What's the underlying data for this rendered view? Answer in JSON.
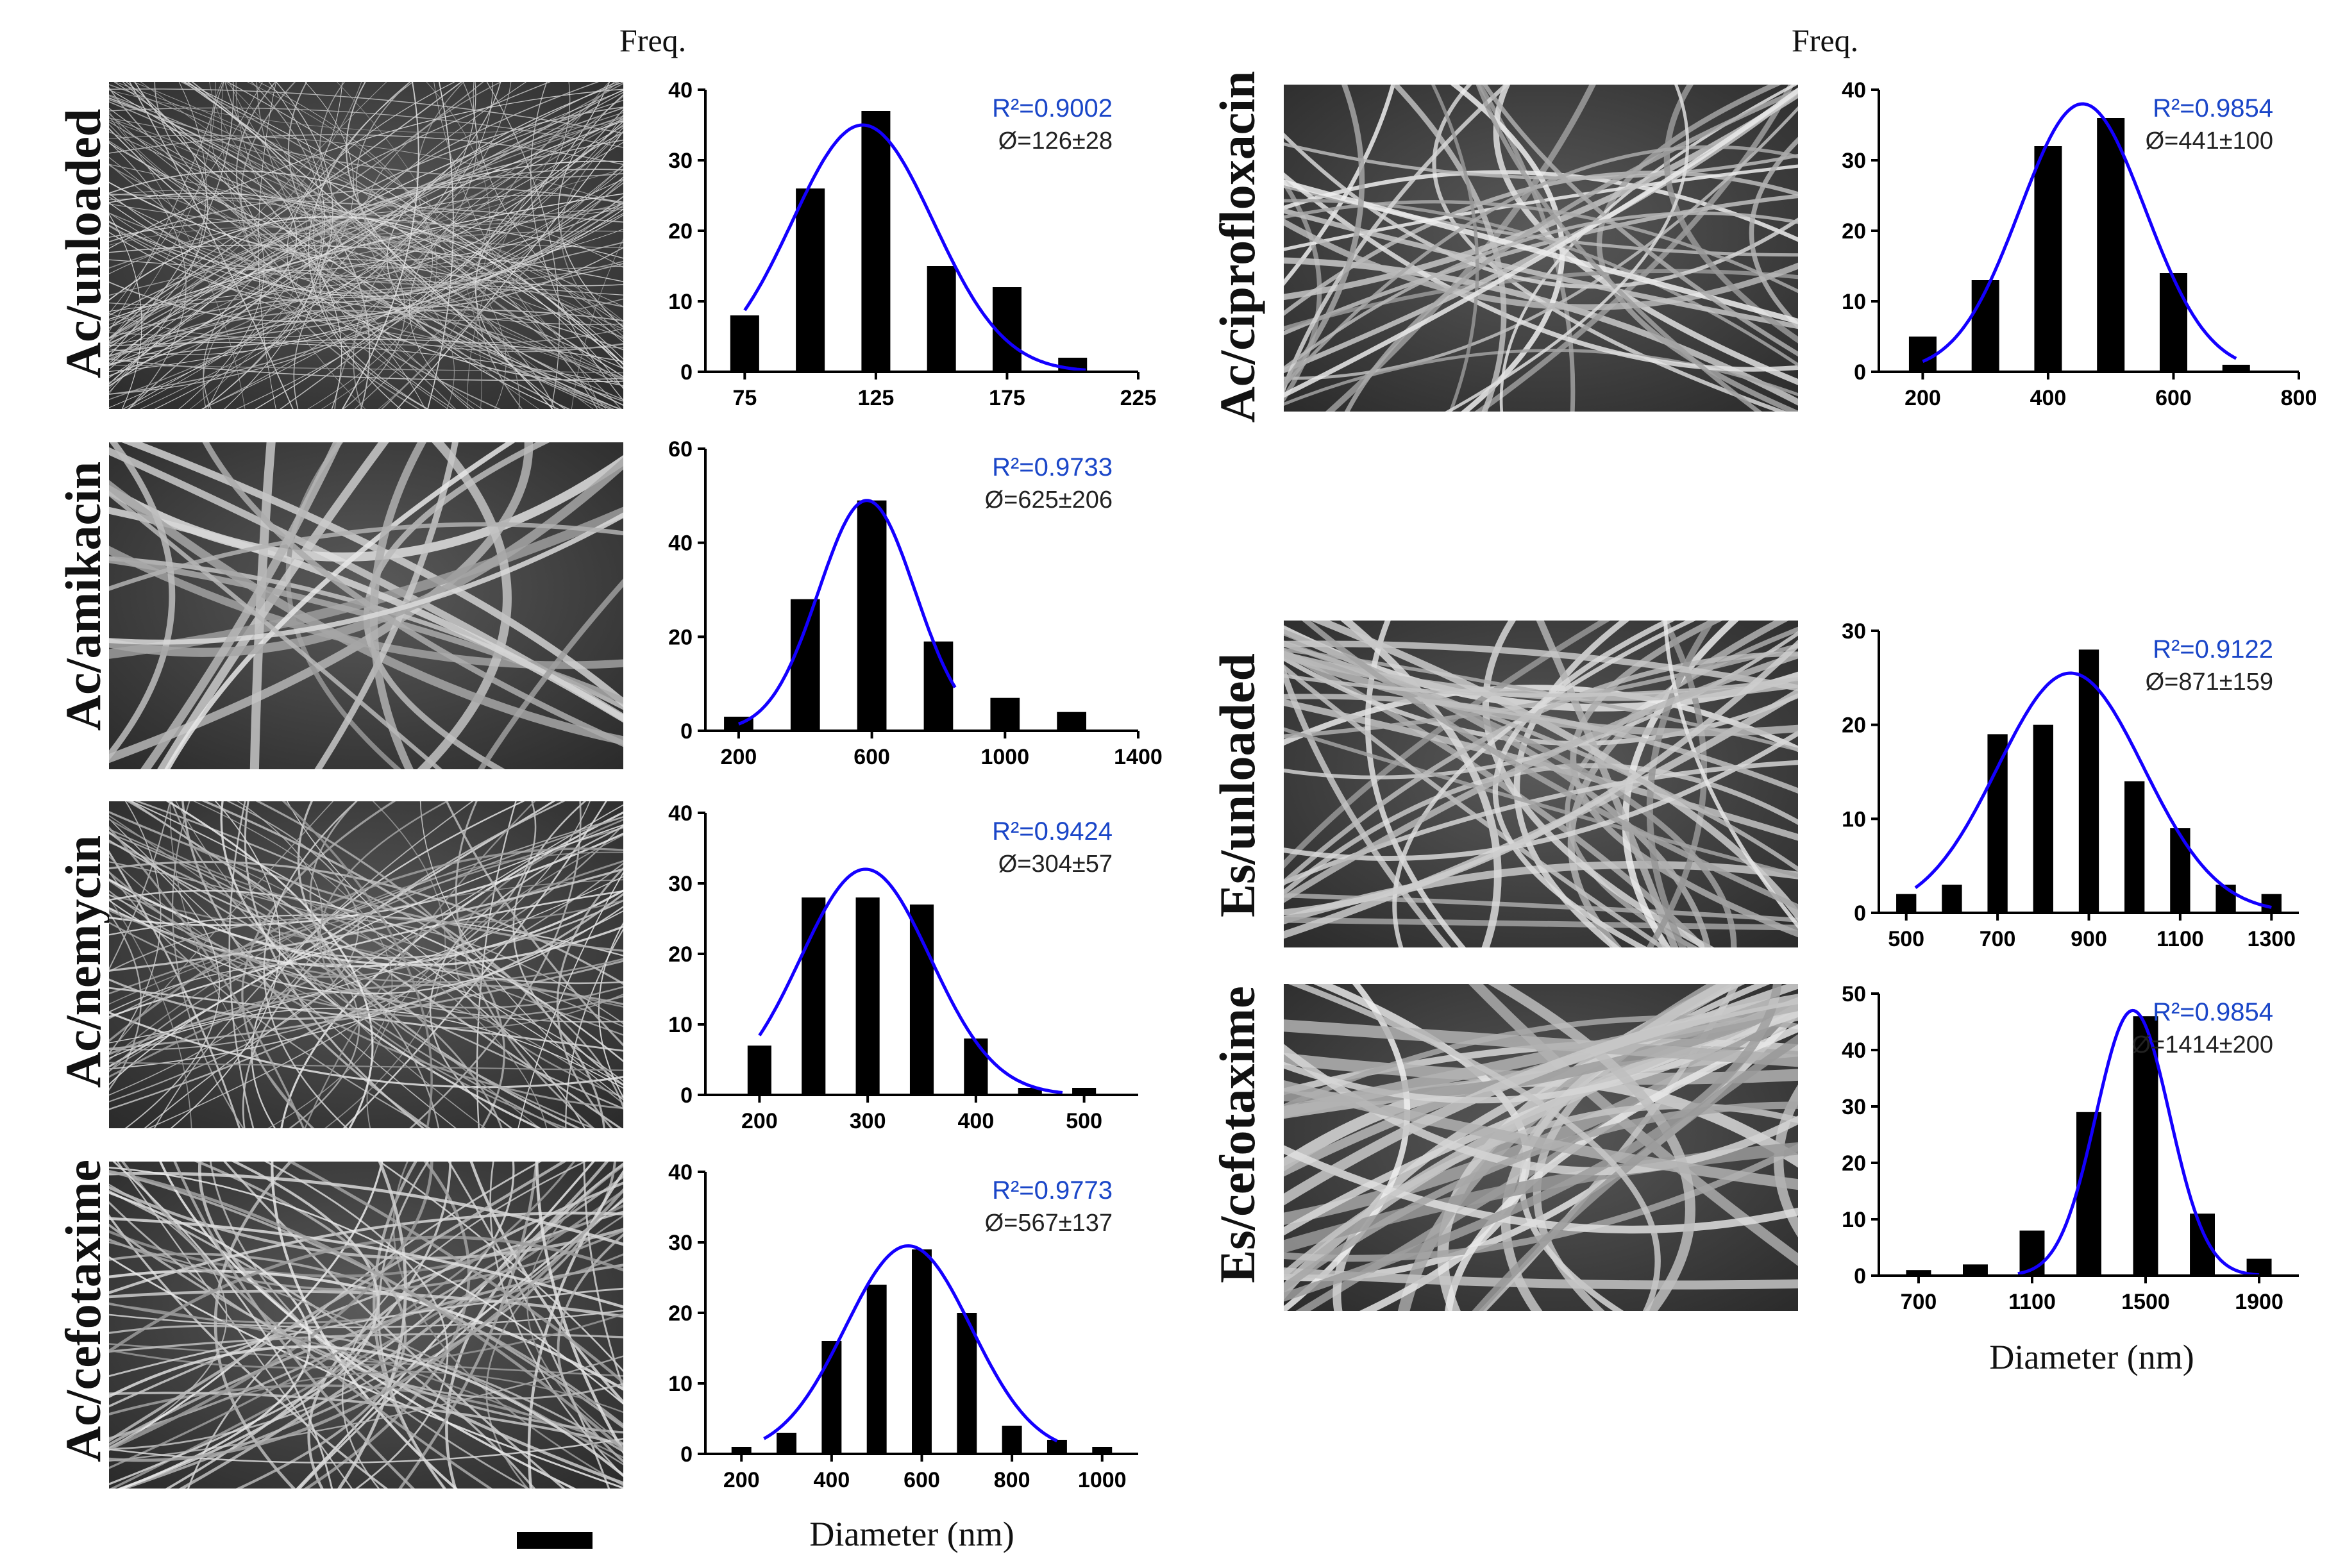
{
  "freq_label": "Freq.",
  "scale_bar": "",
  "colors": {
    "bars": "#000000",
    "fit_curve": "#1400ff",
    "r2_text": "#1a46c8",
    "stat_text": "#222222"
  },
  "panels": [
    {
      "label": "Ac/unloaded",
      "r2": "R²=0.9002",
      "stat": "Ø=126±28"
    },
    {
      "label": "Ac/amikacin",
      "r2": "R²=0.9733",
      "stat": "Ø=625±206"
    },
    {
      "label": "Ac/nemycin",
      "r2": "R²=0.9424",
      "stat": "Ø=304±57"
    },
    {
      "label": "Ac/cefotaxime",
      "r2": "R²=0.9773",
      "stat": "Ø=567±137"
    },
    {
      "label": "Ac/ciprofloxacin",
      "r2": "R²=0.9854",
      "stat": "Ø=441±100"
    },
    {
      "label": "Es/unloaded",
      "r2": "R²=0.9122",
      "stat": "Ø=871±159"
    },
    {
      "label": "Es/cefotaxime",
      "r2": "R²=0.9854",
      "stat": "Ø=1414±200"
    }
  ],
  "x_axis_titles": {
    "left": "Diameter (nm)",
    "right": "Diameter (nm)"
  },
  "chart_data": [
    {
      "type": "bar",
      "name": "Ac/unloaded",
      "ylabel": "Freq.",
      "xlabel": "",
      "x": [
        75,
        100,
        125,
        150,
        175,
        200
      ],
      "values": [
        8,
        26,
        37,
        15,
        12,
        2
      ],
      "xlim": [
        60,
        225
      ],
      "ylim": [
        0,
        40
      ],
      "xticks": [
        75,
        125,
        175,
        225
      ],
      "yticks": [
        0,
        10,
        20,
        30,
        40
      ],
      "fit": {
        "type": "gaussian",
        "mean": 120,
        "sd": 27,
        "peak": 35,
        "x_range": [
          75,
          205
        ]
      },
      "annotations": [
        "R²=0.9002",
        "Ø=126±28"
      ]
    },
    {
      "type": "bar",
      "name": "Ac/amikacin",
      "ylabel": "",
      "xlabel": "",
      "x": [
        200,
        400,
        600,
        800,
        1000,
        1200
      ],
      "values": [
        3,
        28,
        49,
        19,
        7,
        4
      ],
      "xlim": [
        100,
        1400
      ],
      "ylim": [
        0,
        60
      ],
      "xticks": [
        200,
        600,
        1000,
        1400
      ],
      "yticks": [
        0,
        20,
        40,
        60
      ],
      "fit": {
        "type": "gaussian",
        "mean": 585,
        "sd": 145,
        "peak": 49,
        "x_range": [
          200,
          850
        ]
      },
      "annotations": [
        "R²=0.9733",
        "Ø=625±206"
      ]
    },
    {
      "type": "bar",
      "name": "Ac/nemycin",
      "ylabel": "",
      "xlabel": "",
      "x": [
        200,
        250,
        300,
        350,
        400,
        450,
        500
      ],
      "values": [
        7,
        28,
        28,
        27,
        8,
        1,
        1
      ],
      "xlim": [
        150,
        550
      ],
      "ylim": [
        0,
        40
      ],
      "xticks": [
        200,
        300,
        400,
        500
      ],
      "yticks": [
        0,
        10,
        20,
        30,
        40
      ],
      "fit": {
        "type": "gaussian",
        "mean": 298,
        "sd": 60,
        "peak": 32,
        "x_range": [
          200,
          480
        ]
      },
      "annotations": [
        "R²=0.9424",
        "Ø=304±57"
      ]
    },
    {
      "type": "bar",
      "name": "Ac/cefotaxime",
      "ylabel": "",
      "xlabel": "Diameter (nm)",
      "x": [
        200,
        300,
        400,
        500,
        600,
        700,
        800,
        900,
        1000
      ],
      "values": [
        1,
        3,
        16,
        24,
        29,
        20,
        4,
        2,
        1
      ],
      "xlim": [
        120,
        1080
      ],
      "ylim": [
        0,
        40
      ],
      "xticks": [
        200,
        400,
        600,
        800,
        1000
      ],
      "yticks": [
        0,
        10,
        20,
        30,
        40
      ],
      "fit": {
        "type": "gaussian",
        "mean": 570,
        "sd": 140,
        "peak": 29.5,
        "x_range": [
          250,
          900
        ]
      },
      "annotations": [
        "R²=0.9773",
        "Ø=567±137"
      ]
    },
    {
      "type": "bar",
      "name": "Ac/ciprofloxacin",
      "ylabel": "Freq.",
      "xlabel": "",
      "x": [
        200,
        300,
        400,
        500,
        600,
        700
      ],
      "values": [
        5,
        13,
        32,
        36,
        14,
        1
      ],
      "xlim": [
        130,
        800
      ],
      "ylim": [
        0,
        40
      ],
      "xticks": [
        200,
        400,
        600,
        800
      ],
      "yticks": [
        0,
        10,
        20,
        30,
        40
      ],
      "fit": {
        "type": "gaussian",
        "mean": 455,
        "sd": 100,
        "peak": 38,
        "x_range": [
          200,
          700
        ]
      },
      "annotations": [
        "R²=0.9854",
        "Ø=441±100"
      ]
    },
    {
      "type": "bar",
      "name": "Es/unloaded",
      "ylabel": "",
      "xlabel": "",
      "x": [
        500,
        600,
        700,
        800,
        900,
        1000,
        1100,
        1200,
        1300
      ],
      "values": [
        2,
        3,
        19,
        20,
        28,
        14,
        9,
        3,
        2
      ],
      "xlim": [
        440,
        1360
      ],
      "ylim": [
        0,
        30
      ],
      "xticks": [
        500,
        700,
        900,
        1100,
        1300
      ],
      "yticks": [
        0,
        10,
        20,
        30
      ],
      "fit": {
        "type": "gaussian",
        "mean": 860,
        "sd": 160,
        "peak": 25.5,
        "x_range": [
          520,
          1300
        ]
      },
      "annotations": [
        "R²=0.9122",
        "Ø=871±159"
      ]
    },
    {
      "type": "bar",
      "name": "Es/cefotaxime",
      "ylabel": "",
      "xlabel": "Diameter (nm)",
      "x": [
        700,
        900,
        1100,
        1300,
        1500,
        1700,
        1900
      ],
      "values": [
        1,
        2,
        8,
        29,
        46,
        11,
        3
      ],
      "xlim": [
        560,
        2040
      ],
      "ylim": [
        0,
        50
      ],
      "xticks": [
        700,
        1100,
        1500,
        1900
      ],
      "yticks": [
        0,
        10,
        20,
        30,
        40,
        50
      ],
      "fit": {
        "type": "gaussian",
        "mean": 1455,
        "sd": 130,
        "peak": 47,
        "x_range": [
          1050,
          1900
        ]
      },
      "annotations": [
        "R²=0.9854",
        "Ø=1414±200"
      ]
    }
  ]
}
